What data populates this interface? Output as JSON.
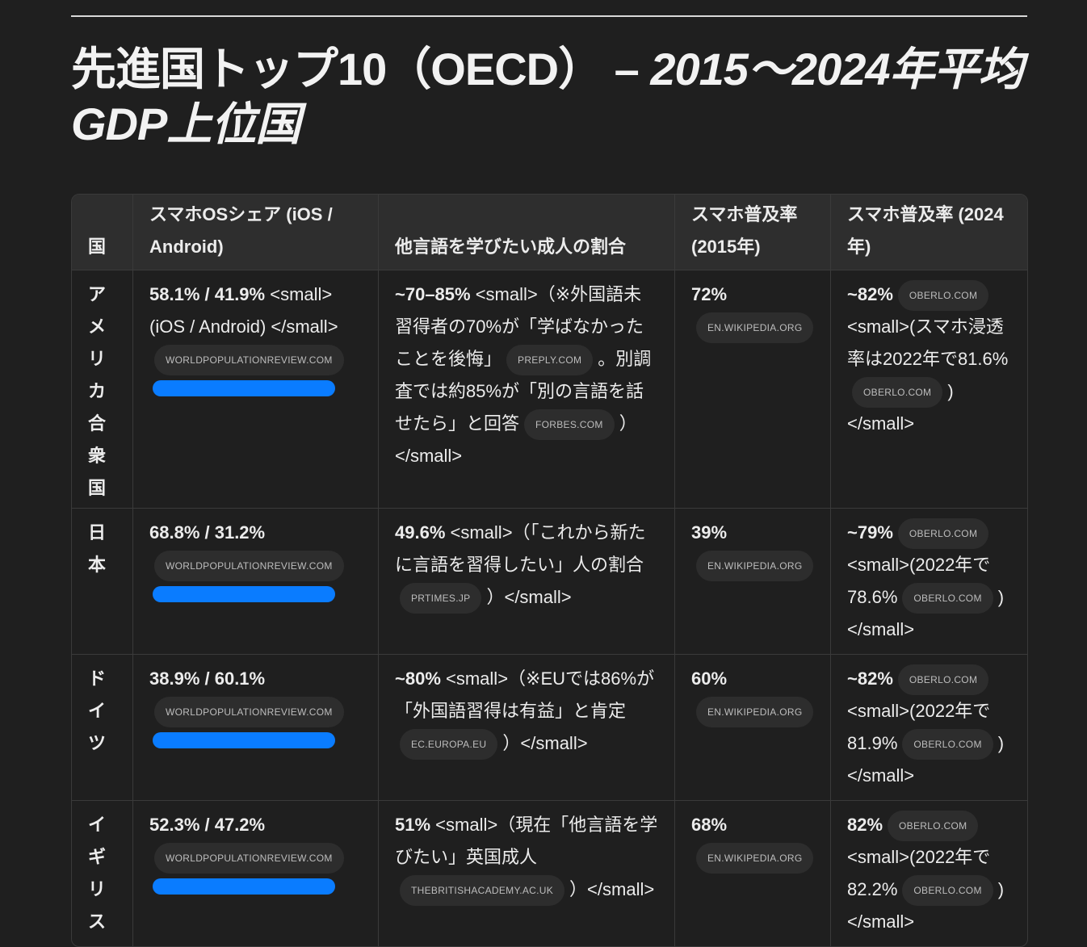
{
  "title": {
    "main": "先進国トップ10（OECD） – ",
    "italic": "2015〜2024年平均GDP上位国"
  },
  "headers": [
    "国",
    "スマホOSシェア (iOS / Android)",
    "他言語を学びたい成人の割合",
    "スマホ普及率 (2015年)",
    "スマホ普及率 (2024年)"
  ],
  "accent": "#0a7cff",
  "rows": [
    {
      "country": "アメリカ合衆国",
      "os": [
        {
          "b": "58.1% / 41.9%"
        },
        {
          "t": " <small>(iOS / Android) </small>"
        },
        {
          "c": "WORLDPOPULATIONREVIEW.COM"
        }
      ],
      "bar": 1,
      "lang": [
        {
          "b": "~70–85%"
        },
        {
          "t": " <small>（※外国語未習得者の70%が「学ばなかったことを後悔」"
        },
        {
          "c": "PREPLY.COM"
        },
        {
          "t": "。別調査では約85%が「別の言語を話せたら」と回答"
        },
        {
          "c": "FORBES.COM"
        },
        {
          "t": "）</small>"
        }
      ],
      "p2015": [
        {
          "b": "72%"
        },
        {
          "c": "EN.WIKIPEDIA.ORG"
        }
      ],
      "p2024": [
        {
          "b": "~82%"
        },
        {
          "c": "OBERLO.COM"
        },
        {
          "t": " <small>(スマホ浸透率は2022年で81.6%"
        },
        {
          "c": "OBERLO.COM"
        },
        {
          "t": ") </small>"
        }
      ]
    },
    {
      "country": "日本",
      "os": [
        {
          "b": "68.8% / 31.2%"
        },
        {
          "c": "WORLDPOPULATIONREVIEW.COM"
        }
      ],
      "bar": 1,
      "lang": [
        {
          "b": "49.6%"
        },
        {
          "t": " <small>（「これから新たに言語を習得したい」人の割合"
        },
        {
          "c": "PRTIMES.JP"
        },
        {
          "t": "）</small>"
        }
      ],
      "p2015": [
        {
          "b": "39%"
        },
        {
          "c": "EN.WIKIPEDIA.ORG"
        }
      ],
      "p2024": [
        {
          "b": "~79%"
        },
        {
          "c": "OBERLO.COM"
        },
        {
          "t": " <small>(2022年で78.6%"
        },
        {
          "c": "OBERLO.COM"
        },
        {
          "t": ") </small>"
        }
      ]
    },
    {
      "country": "ドイツ",
      "os": [
        {
          "b": "38.9% / 60.1%"
        },
        {
          "c": "WORLDPOPULATIONREVIEW.COM"
        }
      ],
      "bar": 1,
      "lang": [
        {
          "b": "~80%"
        },
        {
          "t": " <small>（※EUでは86%が「外国語習得は有益」と肯定"
        },
        {
          "c": "EC.EUROPA.EU"
        },
        {
          "t": "）</small>"
        }
      ],
      "p2015": [
        {
          "b": "60%"
        },
        {
          "c": "EN.WIKIPEDIA.ORG"
        }
      ],
      "p2024": [
        {
          "b": "~82%"
        },
        {
          "c": "OBERLO.COM"
        },
        {
          "t": " <small>(2022年で81.9%"
        },
        {
          "c": "OBERLO.COM"
        },
        {
          "t": ") </small>"
        }
      ]
    },
    {
      "country": "イギリス",
      "os": [
        {
          "b": "52.3% / 47.2%"
        },
        {
          "c": "WORLDPOPULATIONREVIEW.COM"
        }
      ],
      "bar": 1,
      "lang": [
        {
          "b": "51%"
        },
        {
          "t": " <small>（現在「他言語を学びたい」英国成人"
        },
        {
          "c": "THEBRITISHACADEMY.AC.UK"
        },
        {
          "t": "）</small>"
        }
      ],
      "p2015": [
        {
          "b": "68%"
        },
        {
          "c": "EN.WIKIPEDIA.ORG"
        }
      ],
      "p2024": [
        {
          "b": "82%"
        },
        {
          "c": "OBERLO.COM"
        },
        {
          "t": " <small>(2022年で82.2%"
        },
        {
          "c": "OBERLO.COM"
        },
        {
          "t": ") </small>"
        }
      ]
    }
  ]
}
